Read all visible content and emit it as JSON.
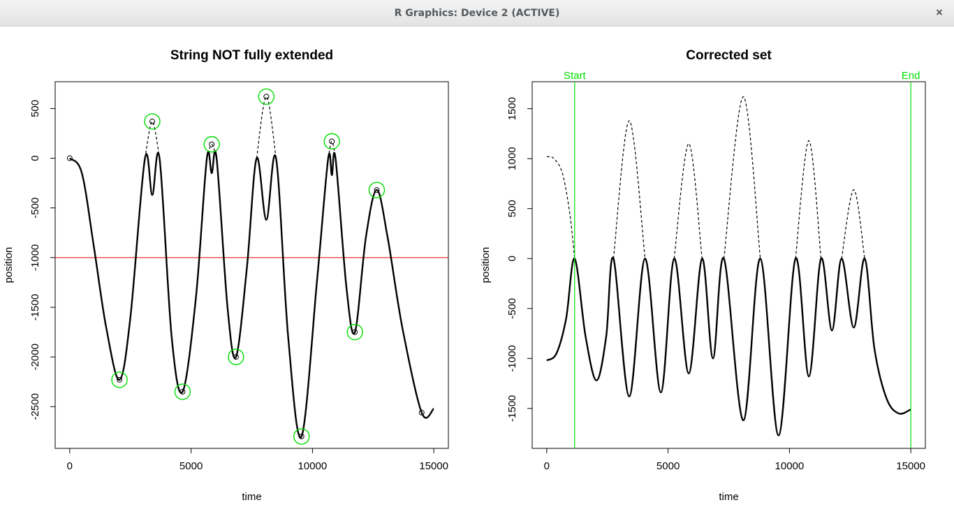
{
  "window": {
    "title": "R Graphics: Device 2 (ACTIVE)",
    "close_icon": "close-icon",
    "close_glyph": "×"
  },
  "colors": {
    "curve": "#000000",
    "threshold": "#dd0000",
    "marker": "#00dd00",
    "axis": "#000000"
  },
  "chart_data": [
    {
      "type": "line",
      "title": "String NOT fully extended",
      "xlabel": "time",
      "ylabel": "position",
      "xlim": [
        -600,
        15600
      ],
      "ylim": [
        -2920,
        770
      ],
      "xticks": [
        0,
        5000,
        10000,
        15000
      ],
      "xtick_labels": [
        "0",
        "5000",
        "10000",
        "15000"
      ],
      "yticks": [
        500,
        0,
        -500,
        -1000,
        -1500,
        -2000,
        -2500
      ],
      "ytick_labels": [
        "500",
        "0",
        "-500",
        "-1000",
        "-1500",
        "-2000",
        "-2500"
      ],
      "grid": false,
      "threshold_y": -1000,
      "series": [
        {
          "style": "solid",
          "x": [
            0,
            500,
            1000,
            1500,
            2050,
            2500,
            3100,
            3400,
            3700,
            4200,
            4650,
            5200,
            5650,
            5850,
            6050,
            6500,
            6850,
            7300,
            7700,
            8100,
            8500,
            9000,
            9550,
            10200,
            10650,
            10800,
            10950,
            11400,
            11750,
            12200,
            12650,
            13100,
            13700,
            14500,
            15000
          ],
          "y": [
            0,
            -150,
            -900,
            -1700,
            -2230,
            -1600,
            0,
            -370,
            0,
            -1800,
            -2350,
            -1400,
            0,
            -150,
            0,
            -1500,
            -2000,
            -1100,
            0,
            -620,
            0,
            -1800,
            -2800,
            -1200,
            0,
            -170,
            0,
            -1300,
            -1750,
            -800,
            -320,
            -800,
            -1700,
            -2560,
            -2520
          ]
        },
        {
          "style": "dashed",
          "x": [
            3100,
            3400,
            3700,
            5650,
            5850,
            6050,
            7700,
            8100,
            8500,
            10650,
            10800,
            10950
          ],
          "y": [
            0,
            370,
            0,
            0,
            140,
            0,
            0,
            620,
            0,
            0,
            170,
            0
          ]
        }
      ],
      "extrema_points": {
        "x": [
          0,
          2050,
          3400,
          4650,
          5850,
          6850,
          8100,
          9550,
          10800,
          11750,
          12650,
          14500
        ],
        "y": [
          0,
          -2230,
          370,
          -2350,
          140,
          -2000,
          620,
          -2800,
          170,
          -1750,
          -320,
          -2560
        ]
      },
      "highlighted_points": {
        "x": [
          2050,
          3400,
          4650,
          5850,
          6850,
          8100,
          9550,
          10800,
          11750,
          12650
        ],
        "y": [
          -2230,
          370,
          -2350,
          140,
          -2000,
          620,
          -2800,
          170,
          -1750,
          -320
        ]
      }
    },
    {
      "type": "line",
      "title": "Corrected set",
      "xlabel": "time",
      "ylabel": "position",
      "xlim": [
        -600,
        15600
      ],
      "ylim": [
        -1900,
        1770
      ],
      "xticks": [
        0,
        5000,
        10000,
        15000
      ],
      "xtick_labels": [
        "0",
        "5000",
        "10000",
        "15000"
      ],
      "yticks": [
        1500,
        1000,
        500,
        0,
        -500,
        -1000,
        -1500
      ],
      "ytick_labels": [
        "1500",
        "1000",
        "500",
        "0",
        "-500",
        "-1000",
        "-1500"
      ],
      "grid": false,
      "vlines": [
        {
          "x": 1150,
          "label": "Start"
        },
        {
          "x": 15000,
          "label": "End"
        }
      ],
      "series": [
        {
          "style": "solid",
          "x": [
            0,
            400,
            800,
            1150,
            1600,
            2050,
            2450,
            2750,
            3400,
            4050,
            4700,
            5250,
            5850,
            6400,
            6850,
            7300,
            8100,
            8800,
            9550,
            10250,
            10800,
            11300,
            11750,
            12150,
            12650,
            13100,
            13500,
            14000,
            14500,
            15000
          ],
          "y": [
            -1020,
            -950,
            -600,
            0,
            -780,
            -1220,
            -780,
            0,
            -1380,
            0,
            -1340,
            0,
            -1150,
            0,
            -1000,
            0,
            -1620,
            0,
            -1770,
            0,
            -1180,
            0,
            -720,
            0,
            -690,
            0,
            -900,
            -1400,
            -1550,
            -1510
          ]
        },
        {
          "style": "dashed",
          "x": [
            0,
            300,
            650,
            950,
            1150,
            2750,
            3400,
            4050,
            5250,
            5850,
            6400,
            7300,
            8100,
            8800,
            10250,
            10800,
            11300,
            12150,
            12650,
            13100
          ],
          "y": [
            1020,
            1000,
            850,
            450,
            0,
            0,
            1380,
            0,
            0,
            1150,
            0,
            0,
            1620,
            0,
            0,
            1180,
            0,
            0,
            690,
            0
          ]
        }
      ]
    }
  ]
}
